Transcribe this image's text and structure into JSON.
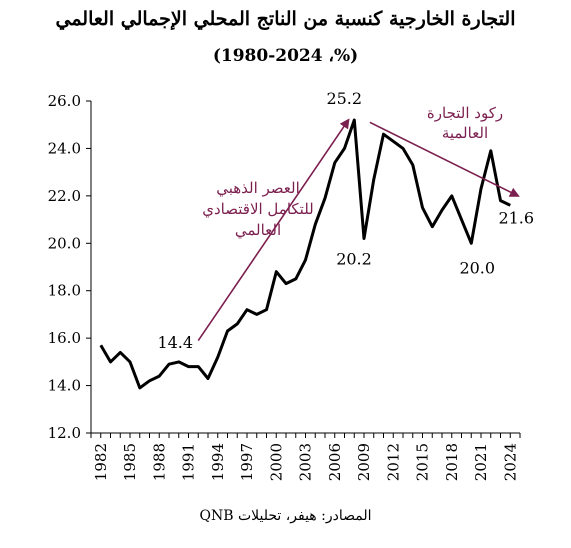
{
  "title": "التجارة الخارجية كنسبة من الناتج المحلي الإجمالي العالمي",
  "subtitle": "(%، 1980-2024)",
  "source": "المصادر: هيفر، تحليلات QNB",
  "colors": {
    "line": "#000000",
    "arrow": "#7b1f4e",
    "annotation": "#7b1f4e"
  },
  "chart_data": {
    "type": "line",
    "x_tick_labels": [
      "1982",
      "1985",
      "1988",
      "1991",
      "1994",
      "1997",
      "2000",
      "2003",
      "2006",
      "2009",
      "2012",
      "2015",
      "2018",
      "2021",
      "2024"
    ],
    "y_tick_labels": [
      "12.0",
      "14.0",
      "16.0",
      "18.0",
      "20.0",
      "22.0",
      "24.0",
      "26.0"
    ],
    "xlim": [
      1981,
      2025
    ],
    "ylim": [
      12,
      26
    ],
    "grid": false,
    "x": [
      1982,
      1983,
      1984,
      1985,
      1986,
      1987,
      1988,
      1989,
      1990,
      1991,
      1992,
      1993,
      1994,
      1995,
      1996,
      1997,
      1998,
      1999,
      2000,
      2001,
      2002,
      2003,
      2004,
      2005,
      2006,
      2007,
      2008,
      2009,
      2010,
      2011,
      2012,
      2013,
      2014,
      2015,
      2016,
      2017,
      2018,
      2019,
      2020,
      2021,
      2022,
      2023,
      2024
    ],
    "y": [
      15.7,
      15.0,
      15.4,
      15.0,
      13.9,
      14.2,
      14.4,
      14.9,
      15.0,
      14.8,
      14.8,
      14.3,
      15.2,
      16.3,
      16.6,
      17.2,
      17.0,
      17.2,
      18.8,
      18.3,
      18.5,
      19.3,
      20.8,
      21.9,
      23.4,
      24.0,
      25.2,
      20.2,
      22.7,
      24.6,
      24.3,
      24.0,
      23.3,
      21.5,
      20.7,
      21.4,
      22.0,
      21.0,
      20.0,
      22.3,
      23.9,
      21.8,
      21.6
    ],
    "data_labels": [
      {
        "text": "14.4",
        "x": 1988,
        "y": 14.4
      },
      {
        "text": "25.2",
        "x": 2008,
        "y": 25.2
      },
      {
        "text": "20.2",
        "x": 2009,
        "y": 20.2
      },
      {
        "text": "20.0",
        "x": 2020,
        "y": 20.0
      },
      {
        "text": "21.6",
        "x": 2024,
        "y": 21.6
      }
    ],
    "annotations": [
      {
        "lines": [
          "العصر الذهبي",
          "للتكامل الاقتصادي",
          "العالمي"
        ]
      },
      {
        "lines": [
          "ركود التجارة",
          "العالمية"
        ]
      }
    ]
  }
}
